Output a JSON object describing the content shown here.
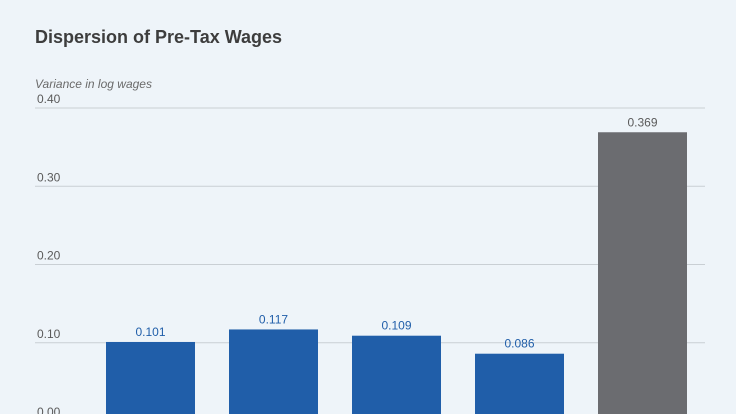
{
  "chart_data": {
    "type": "bar",
    "title": "Dispersion of Pre-Tax Wages",
    "ylabel": "Variance in log wages",
    "xlabel": "",
    "ylim": [
      0,
      0.4
    ],
    "yticks": [
      "0.00",
      "0.10",
      "0.20",
      "0.30",
      "0.40"
    ],
    "grid": true,
    "values": [
      0.101,
      0.117,
      0.109,
      0.086,
      0.369
    ],
    "value_labels": [
      "0.101",
      "0.117",
      "0.109",
      "0.086",
      "0.369"
    ],
    "bar_colors": [
      "#205ea9",
      "#205ea9",
      "#205ea9",
      "#205ea9",
      "#6b6c70"
    ],
    "label_colors": [
      "#205ea9",
      "#205ea9",
      "#205ea9",
      "#205ea9",
      "#5a5a5a"
    ]
  }
}
